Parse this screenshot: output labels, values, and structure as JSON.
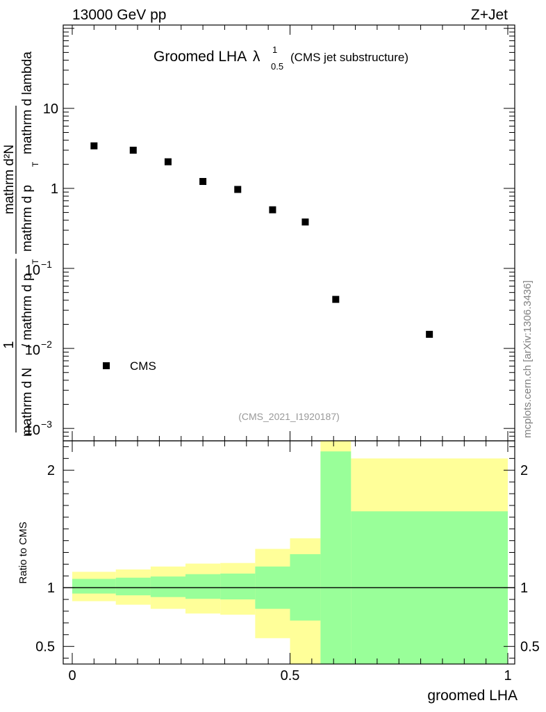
{
  "header": {
    "energy_label": "13000 GeV pp",
    "process_label": "Z+Jet"
  },
  "plot_title": {
    "main": "Groomed LHA",
    "lambda_symbol": "λ",
    "lambda_super": "1",
    "lambda_sub": "0.5",
    "note": "(CMS jet substructure)"
  },
  "analysis_id": "(CMS_2021_I1920187)",
  "watermark": "mcplots.cern.ch [arXiv:1306.3436]",
  "chart_data": [
    {
      "type": "scatter",
      "panel": "main",
      "yscale": "log",
      "ylabel": {
        "numerator_one": "1",
        "denominator_left": "mathrm d N",
        "denominator_right": "/ mathrm d p",
        "derivative_numerator": "mathrm d²N",
        "derivative_denominator": "mathrm d p",
        "derivative_tail": "mathrm d lambda",
        "sub_T": "T"
      },
      "xlim": [
        0,
        1
      ],
      "ylim": [
        0.0007,
        110
      ],
      "y_ticks": [
        {
          "value": 0.001,
          "base": "10",
          "exp": "−3"
        },
        {
          "value": 0.01,
          "base": "10",
          "exp": "−2"
        },
        {
          "value": 0.1,
          "base": "10",
          "exp": "−1"
        },
        {
          "value": 1,
          "label": "1"
        },
        {
          "value": 10,
          "label": "10"
        }
      ],
      "series": [
        {
          "name": "CMS",
          "marker": "square",
          "color": "#000000",
          "x": [
            0.05,
            0.14,
            0.22,
            0.3,
            0.38,
            0.46,
            0.535,
            0.605,
            0.82
          ],
          "y": [
            3.4,
            3.0,
            2.15,
            1.22,
            0.97,
            0.54,
            0.38,
            0.041,
            0.015
          ]
        }
      ],
      "legend": [
        {
          "label": "CMS",
          "marker": "square"
        }
      ],
      "legend_position": "bottom-left"
    },
    {
      "type": "area",
      "panel": "ratio",
      "ylabel": "Ratio to CMS",
      "xlabel": "groomed LHA",
      "xlim": [
        0,
        1
      ],
      "ylim": [
        0.35,
        2.25
      ],
      "x_ticks": [
        {
          "value": 0,
          "label": "0"
        },
        {
          "value": 0.5,
          "label": "0.5"
        },
        {
          "value": 1,
          "label": "1"
        }
      ],
      "y_ticks": [
        {
          "value": 0.5,
          "label": "0.5"
        },
        {
          "value": 1,
          "label": "1"
        },
        {
          "value": 2,
          "label": "2"
        }
      ],
      "reference_line": 1,
      "bin_edges": [
        0,
        0.1,
        0.18,
        0.26,
        0.34,
        0.42,
        0.5,
        0.57,
        0.64,
        1.0
      ],
      "inner_band": {
        "name": "stat",
        "color": "#99ff99",
        "low": [
          0.95,
          0.935,
          0.92,
          0.905,
          0.9,
          0.82,
          0.72,
          0.35,
          0.35
        ],
        "high": [
          1.075,
          1.085,
          1.095,
          1.115,
          1.12,
          1.18,
          1.285,
          2.16,
          1.65
        ]
      },
      "outer_band": {
        "name": "total",
        "color": "#ffff99",
        "low": [
          0.885,
          0.855,
          0.82,
          0.78,
          0.77,
          0.57,
          0.35,
          0.35,
          0.37
        ],
        "high": [
          1.135,
          1.155,
          1.18,
          1.205,
          1.21,
          1.33,
          1.42,
          2.3,
          2.1
        ]
      }
    }
  ]
}
